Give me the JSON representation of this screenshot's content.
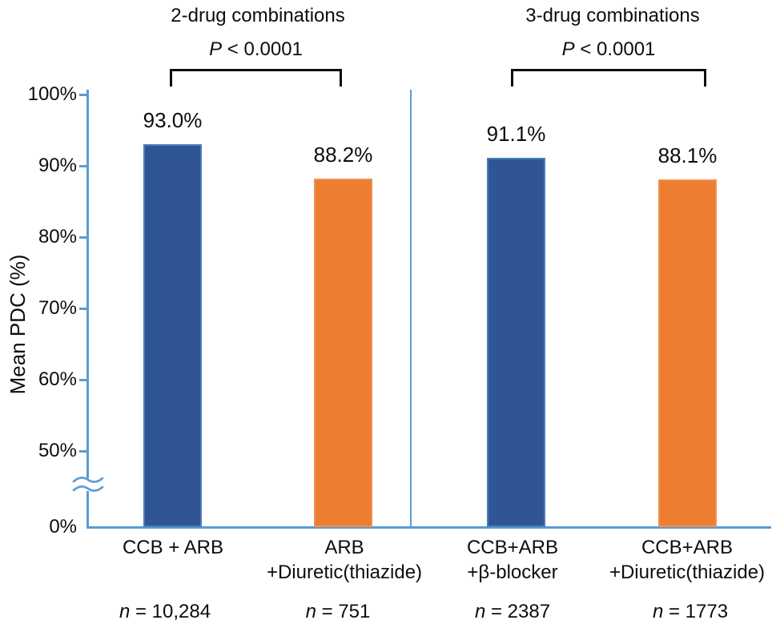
{
  "chart_data": {
    "type": "bar",
    "ylabel": "Mean PDC (%)",
    "y_axis": {
      "tick_labels": [
        "100%",
        "90%",
        "80%",
        "70%",
        "60%",
        "50%",
        "0%"
      ],
      "display_range": [
        50,
        100
      ],
      "axis_break_between": [
        "0%",
        "50%"
      ],
      "axis_color": "#5B9BD5"
    },
    "colors": {
      "blue": "#2F5597",
      "blue_border": "#4A7EBB",
      "orange": "#ED7D31",
      "orange_border": "#F09150",
      "axis": "#5B9BD5",
      "text": "#0d0d0d"
    },
    "groups": [
      {
        "title": "2-drug combinations",
        "p_value": "P < 0.0001",
        "bars": [
          {
            "label_line1": "CCB + ARB",
            "label_line2": "",
            "value": 93.0,
            "value_label": "93.0%",
            "n_label": "n = 10,284",
            "color": "#2F5597",
            "border_color": "#4A7EBB"
          },
          {
            "label_line1": "ARB",
            "label_line2": "+Diuretic(thiazide)",
            "value": 88.2,
            "value_label": "88.2%",
            "n_label": "n = 751",
            "color": "#ED7D31",
            "border_color": "#F09150"
          }
        ]
      },
      {
        "title": "3-drug combinations",
        "p_value": "P < 0.0001",
        "bars": [
          {
            "label_line1": "CCB+ARB",
            "label_line2": "+β-blocker",
            "value": 91.1,
            "value_label": "91.1%",
            "n_label": "n = 2387",
            "color": "#2F5597",
            "border_color": "#4A7EBB"
          },
          {
            "label_line1": "CCB+ARB",
            "label_line2": "+Diuretic(thiazide)",
            "value": 88.1,
            "value_label": "88.1%",
            "n_label": "n = 1773",
            "color": "#ED7D31",
            "border_color": "#F09150"
          }
        ]
      }
    ]
  }
}
